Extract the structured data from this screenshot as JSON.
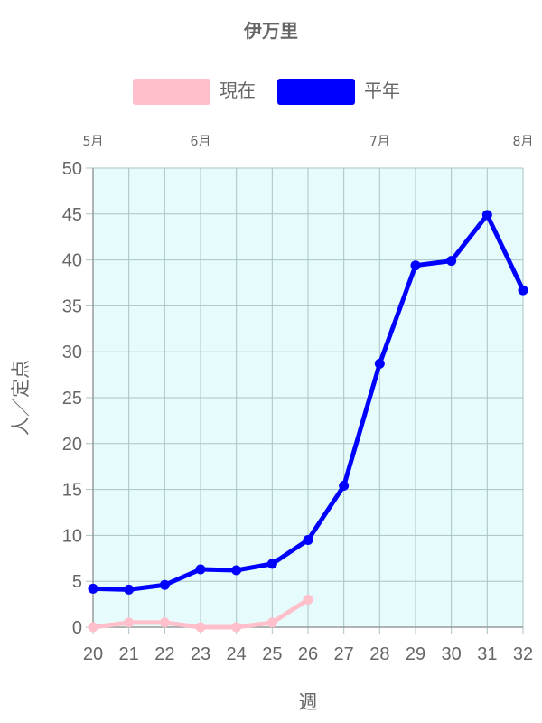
{
  "chart_data": {
    "type": "line",
    "title": "伊万里",
    "xlabel": "週",
    "ylabel": "人／定点",
    "x": [
      20,
      21,
      22,
      23,
      24,
      25,
      26,
      27,
      28,
      29,
      30,
      31,
      32
    ],
    "xlim": [
      20,
      32
    ],
    "ylim": [
      0,
      50
    ],
    "yticks": [
      0,
      5,
      10,
      15,
      20,
      25,
      30,
      35,
      40,
      45,
      50
    ],
    "grid": true,
    "legend_position": "top",
    "plot_background": "#e6fcfc",
    "grid_color": "#a9c4c4",
    "month_markers": [
      {
        "label": "5月",
        "week": 20
      },
      {
        "label": "6月",
        "week": 23
      },
      {
        "label": "7月",
        "week": 28
      },
      {
        "label": "8月",
        "week": 32
      }
    ],
    "series": [
      {
        "name": "現在",
        "color": "#ffc0cb",
        "x": [
          20,
          21,
          22,
          23,
          24,
          25,
          26
        ],
        "values": [
          0.0,
          0.5,
          0.5,
          0.0,
          0.0,
          0.5,
          3.0
        ]
      },
      {
        "name": "平年",
        "color": "#0000ff",
        "x": [
          20,
          21,
          22,
          23,
          24,
          25,
          26,
          27,
          28,
          29,
          30,
          31,
          32
        ],
        "values": [
          4.2,
          4.1,
          4.6,
          6.3,
          6.2,
          6.9,
          9.5,
          15.4,
          28.7,
          39.4,
          39.9,
          44.9,
          36.7
        ]
      }
    ]
  }
}
